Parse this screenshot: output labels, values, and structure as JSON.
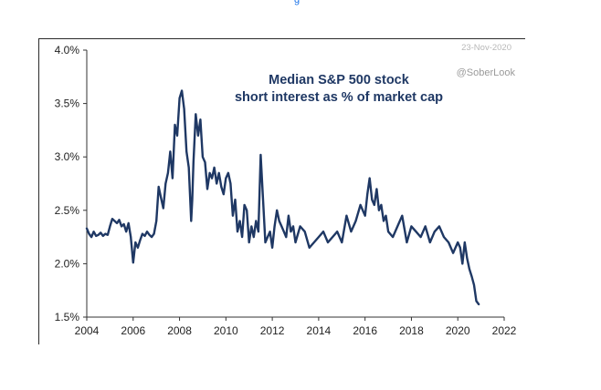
{
  "top_link": "g",
  "chart_data": {
    "type": "line",
    "title_lines": [
      "Median S&P 500 stock",
      "short interest as % of market cap"
    ],
    "date_stamp": "23-Nov-2020",
    "source": "@SoberLook",
    "xlabel": "",
    "ylabel": "",
    "xlim": [
      2004,
      2022
    ],
    "ylim": [
      1.5,
      4.0
    ],
    "x_ticks": [
      2004,
      2006,
      2008,
      2010,
      2012,
      2014,
      2016,
      2018,
      2020,
      2022
    ],
    "x_tick_labels": [
      "2004",
      "2006",
      "2008",
      "2010",
      "2012",
      "2014",
      "2016",
      "2018",
      "2020",
      "2022"
    ],
    "y_ticks": [
      1.5,
      2.0,
      2.5,
      3.0,
      3.5,
      4.0
    ],
    "y_tick_labels": [
      "1.5%",
      "2.0%",
      "2.5%",
      "3.0%",
      "3.5%",
      "4.0%"
    ],
    "grid": false,
    "line_color": "#1f3864",
    "series": [
      {
        "name": "Median S&P 500 stock short interest as % of market cap",
        "x": [
          2004.0,
          2004.1,
          2004.2,
          2004.3,
          2004.4,
          2004.5,
          2004.6,
          2004.7,
          2004.8,
          2004.9,
          2005.0,
          2005.1,
          2005.2,
          2005.3,
          2005.4,
          2005.5,
          2005.6,
          2005.7,
          2005.8,
          2005.9,
          2006.0,
          2006.1,
          2006.2,
          2006.3,
          2006.4,
          2006.5,
          2006.6,
          2006.7,
          2006.8,
          2006.9,
          2007.0,
          2007.1,
          2007.2,
          2007.3,
          2007.4,
          2007.5,
          2007.6,
          2007.7,
          2007.8,
          2007.9,
          2008.0,
          2008.1,
          2008.2,
          2008.3,
          2008.4,
          2008.5,
          2008.55,
          2008.6,
          2008.7,
          2008.8,
          2008.9,
          2009.0,
          2009.1,
          2009.2,
          2009.3,
          2009.4,
          2009.5,
          2009.6,
          2009.7,
          2009.8,
          2009.9,
          2010.0,
          2010.1,
          2010.2,
          2010.3,
          2010.4,
          2010.5,
          2010.6,
          2010.7,
          2010.8,
          2010.9,
          2011.0,
          2011.1,
          2011.2,
          2011.3,
          2011.4,
          2011.5,
          2011.6,
          2011.7,
          2011.8,
          2011.9,
          2012.0,
          2012.1,
          2012.2,
          2012.3,
          2012.4,
          2012.5,
          2012.6,
          2012.7,
          2012.8,
          2012.9,
          2013.0,
          2013.2,
          2013.4,
          2013.6,
          2013.8,
          2014.0,
          2014.2,
          2014.4,
          2014.6,
          2014.8,
          2015.0,
          2015.2,
          2015.4,
          2015.6,
          2015.8,
          2016.0,
          2016.1,
          2016.2,
          2016.3,
          2016.4,
          2016.5,
          2016.6,
          2016.7,
          2016.8,
          2016.9,
          2017.0,
          2017.2,
          2017.4,
          2017.6,
          2017.8,
          2018.0,
          2018.2,
          2018.4,
          2018.6,
          2018.8,
          2019.0,
          2019.2,
          2019.4,
          2019.6,
          2019.8,
          2020.0,
          2020.1,
          2020.2,
          2020.3,
          2020.4,
          2020.5,
          2020.6,
          2020.7,
          2020.8,
          2020.9
        ],
        "values": [
          2.33,
          2.28,
          2.25,
          2.3,
          2.26,
          2.27,
          2.29,
          2.26,
          2.28,
          2.27,
          2.35,
          2.42,
          2.4,
          2.38,
          2.41,
          2.35,
          2.37,
          2.3,
          2.38,
          2.25,
          2.01,
          2.2,
          2.15,
          2.22,
          2.28,
          2.26,
          2.3,
          2.27,
          2.25,
          2.28,
          2.4,
          2.72,
          2.62,
          2.52,
          2.75,
          2.85,
          3.05,
          2.8,
          3.3,
          3.2,
          3.55,
          3.62,
          3.45,
          3.05,
          2.9,
          2.4,
          2.6,
          2.95,
          3.4,
          3.2,
          3.35,
          3.0,
          2.95,
          2.7,
          2.85,
          2.8,
          2.9,
          2.75,
          2.85,
          2.72,
          2.65,
          2.8,
          2.85,
          2.75,
          2.45,
          2.6,
          2.3,
          2.4,
          2.25,
          2.55,
          2.5,
          2.2,
          2.35,
          2.25,
          2.4,
          2.3,
          3.02,
          2.6,
          2.2,
          2.25,
          2.3,
          2.15,
          2.35,
          2.5,
          2.4,
          2.35,
          2.3,
          2.25,
          2.45,
          2.3,
          2.35,
          2.2,
          2.35,
          2.3,
          2.15,
          2.2,
          2.25,
          2.3,
          2.2,
          2.25,
          2.3,
          2.2,
          2.45,
          2.3,
          2.4,
          2.55,
          2.45,
          2.65,
          2.8,
          2.6,
          2.55,
          2.7,
          2.5,
          2.55,
          2.4,
          2.45,
          2.3,
          2.25,
          2.35,
          2.45,
          2.2,
          2.35,
          2.3,
          2.25,
          2.35,
          2.2,
          2.3,
          2.35,
          2.25,
          2.2,
          2.1,
          2.2,
          2.15,
          2.0,
          2.2,
          2.05,
          1.95,
          1.88,
          1.8,
          1.65,
          1.62
        ]
      }
    ]
  }
}
